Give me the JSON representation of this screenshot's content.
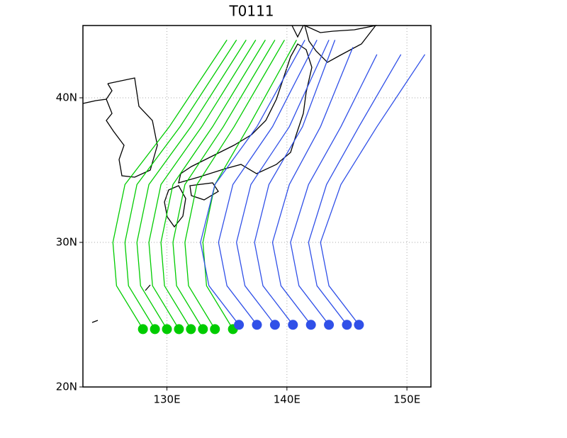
{
  "chart_data": {
    "type": "trajectory",
    "title": "T0111",
    "xlim": [
      123,
      152
    ],
    "ylim": [
      20,
      45
    ],
    "xticks": [
      {
        "value": 130,
        "label": "130E"
      },
      {
        "value": 140,
        "label": "140E"
      },
      {
        "value": 150,
        "label": "150E"
      }
    ],
    "yticks": [
      {
        "value": 20,
        "label": "20N"
      },
      {
        "value": 30,
        "label": "30N"
      },
      {
        "value": 40,
        "label": "40N"
      }
    ],
    "grid": true,
    "series": [
      {
        "color": "#00cc00",
        "x": [
          128,
          125.8,
          125.5,
          126.5,
          130.2,
          135
        ],
        "values": [
          24,
          27,
          30,
          34,
          38,
          44
        ]
      },
      {
        "color": "#00cc00",
        "x": [
          129,
          126.8,
          126.5,
          127.5,
          131.1,
          135.8
        ],
        "values": [
          24,
          27,
          30,
          34,
          38,
          44
        ]
      },
      {
        "color": "#00cc00",
        "x": [
          130,
          127.8,
          127.5,
          128.5,
          132,
          136.6
        ],
        "values": [
          24,
          27,
          30,
          34,
          38,
          44
        ]
      },
      {
        "color": "#00cc00",
        "x": [
          131,
          128.8,
          128.5,
          129.5,
          132.9,
          137.4
        ],
        "values": [
          24,
          27,
          30,
          34,
          38,
          44
        ]
      },
      {
        "color": "#00cc00",
        "x": [
          132,
          129.8,
          129.5,
          130.5,
          133.8,
          138.2
        ],
        "values": [
          24,
          27,
          30,
          34,
          38,
          44
        ]
      },
      {
        "color": "#00cc00",
        "x": [
          133,
          130.8,
          130.5,
          131.5,
          134.7,
          139
        ],
        "values": [
          24,
          27,
          30,
          34,
          38,
          44
        ]
      },
      {
        "color": "#00cc00",
        "x": [
          134,
          131.8,
          131.5,
          132.5,
          135.6,
          139.8
        ],
        "values": [
          24,
          27,
          30,
          34,
          38,
          44
        ]
      },
      {
        "color": "#00cc00",
        "x": [
          135.5,
          133.3,
          133,
          134,
          136.8,
          140.8
        ],
        "values": [
          24,
          27,
          30,
          34,
          38,
          44
        ]
      },
      {
        "color": "#3050e8",
        "x": [
          136,
          133.5,
          132.8,
          134,
          137.5,
          141.5
        ],
        "values": [
          24.3,
          27,
          30,
          34,
          38,
          44
        ]
      },
      {
        "color": "#3050e8",
        "x": [
          137.5,
          135,
          134.3,
          135.5,
          138.8,
          142.5
        ],
        "values": [
          24.3,
          27,
          30,
          34,
          38,
          44
        ]
      },
      {
        "color": "#3050e8",
        "x": [
          139,
          136.5,
          135.8,
          137,
          140.2,
          143.5
        ],
        "values": [
          24.3,
          27,
          30,
          34,
          38,
          44
        ]
      },
      {
        "color": "#3050e8",
        "x": [
          140.5,
          138,
          137.3,
          138.5,
          141.3,
          144
        ],
        "values": [
          24.3,
          27,
          30,
          34,
          38,
          44
        ]
      },
      {
        "color": "#3050e8",
        "x": [
          142,
          139.5,
          138.8,
          140.2,
          142.8,
          145.5
        ],
        "values": [
          24.3,
          27,
          30,
          34,
          38,
          43.5
        ]
      },
      {
        "color": "#3050e8",
        "x": [
          143.5,
          141,
          140.3,
          141.8,
          144.5,
          147.5
        ],
        "values": [
          24.3,
          27,
          30,
          34,
          38,
          43
        ]
      },
      {
        "color": "#3050e8",
        "x": [
          145,
          142.5,
          141.8,
          143.3,
          146,
          149.5
        ],
        "values": [
          24.3,
          27,
          30,
          34,
          38,
          43
        ]
      },
      {
        "color": "#3050e8",
        "x": [
          146,
          143.5,
          142.8,
          144.5,
          147.5,
          151.5
        ],
        "values": [
          24.3,
          27,
          30,
          34,
          38,
          43
        ]
      }
    ]
  }
}
